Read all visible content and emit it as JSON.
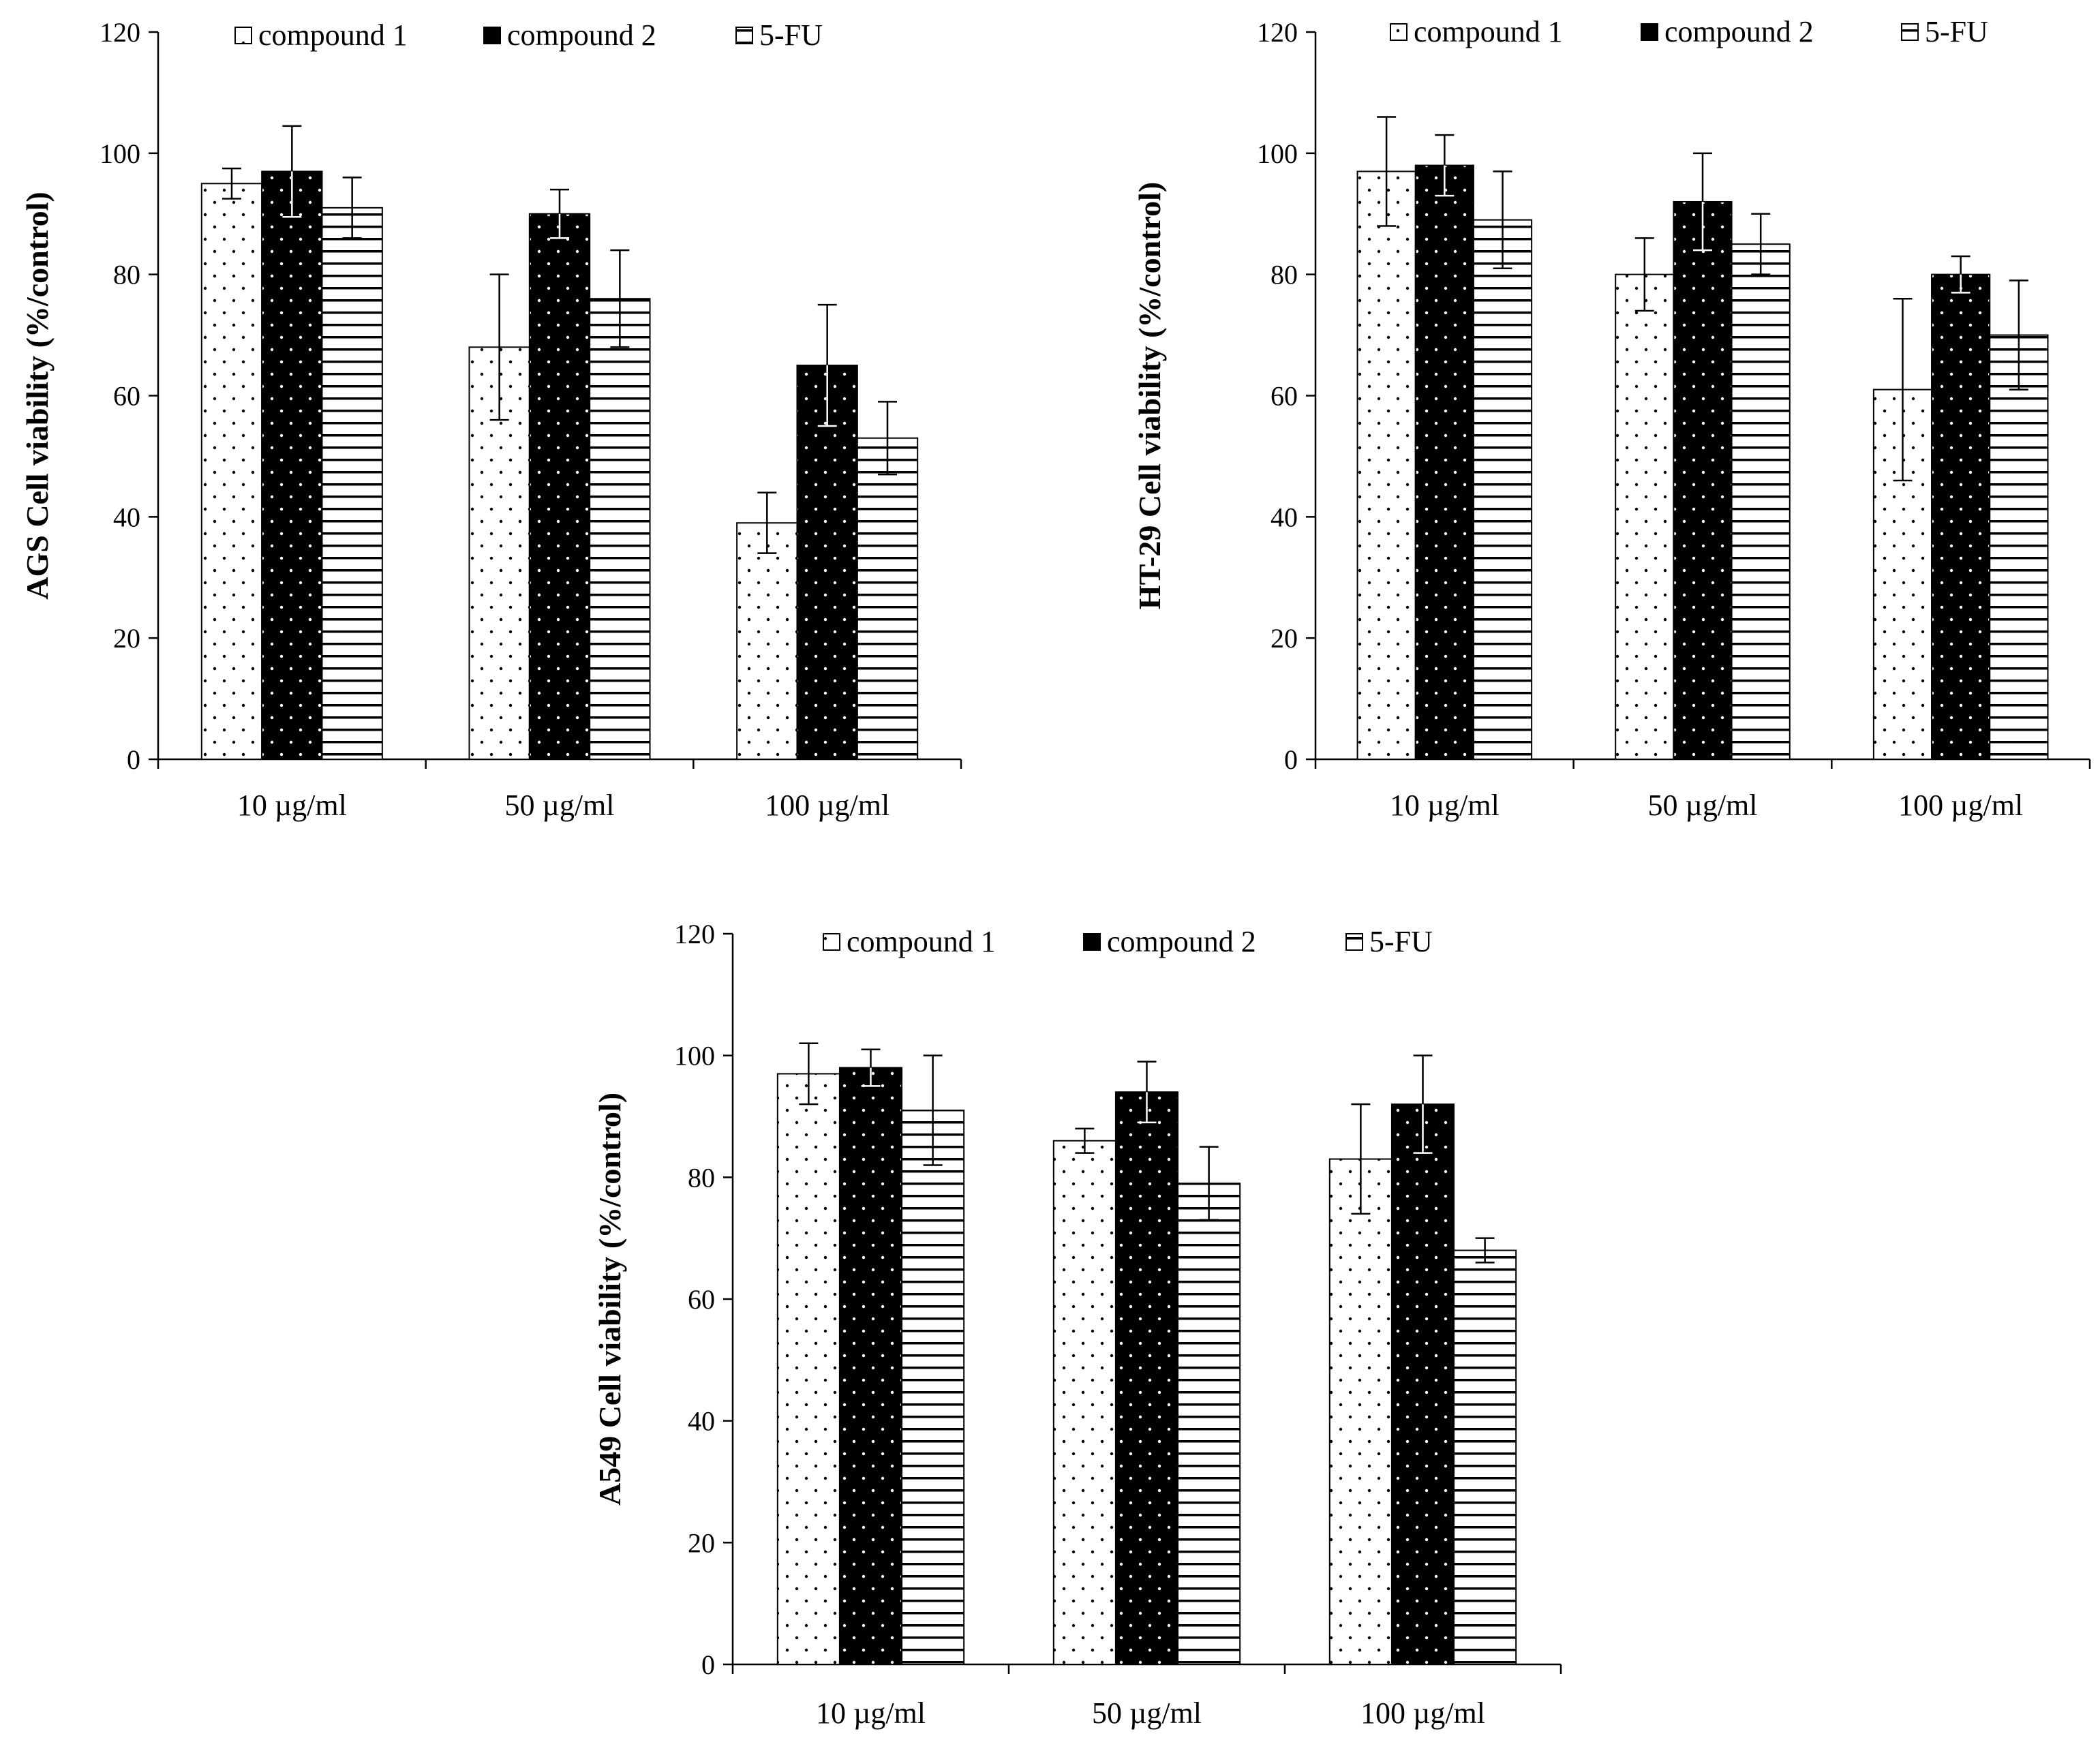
{
  "colors": {
    "axis": "#000000",
    "bar_edge": "#000000",
    "dark_fill": "#000000",
    "light_fill": "#ffffff"
  },
  "chart_data": [
    {
      "type": "bar",
      "ylabel": "AGS Cell viability (%/control)",
      "categories": [
        "10 µg/ml",
        "50 µg/ml",
        "100 µg/ml"
      ],
      "ylim": [
        0,
        120
      ],
      "yticks": [
        0,
        20,
        40,
        60,
        80,
        100,
        120
      ],
      "legend_position": "top",
      "series": [
        {
          "name": "compound 1",
          "pattern": "dots-light",
          "values": [
            95,
            68,
            39
          ],
          "errors": [
            2.5,
            12,
            5
          ]
        },
        {
          "name": "compound 2",
          "pattern": "dots-dark",
          "values": [
            97,
            90,
            65
          ],
          "errors": [
            7.5,
            4,
            10
          ]
        },
        {
          "name": "5-FU",
          "pattern": "hlines",
          "values": [
            91,
            76,
            53
          ],
          "errors": [
            5,
            8,
            6
          ]
        }
      ]
    },
    {
      "type": "bar",
      "ylabel": "HT-29 Cell viability (%/control)",
      "categories": [
        "10 µg/ml",
        "50 µg/ml",
        "100 µg/ml"
      ],
      "ylim": [
        0,
        120
      ],
      "yticks": [
        0,
        20,
        40,
        60,
        80,
        100,
        120
      ],
      "legend_position": "top",
      "series": [
        {
          "name": "compound 1",
          "pattern": "dots-light",
          "values": [
            97,
            80,
            61
          ],
          "errors": [
            9,
            6,
            15
          ]
        },
        {
          "name": "compound 2",
          "pattern": "dots-dark",
          "values": [
            98,
            92,
            80
          ],
          "errors": [
            5,
            8,
            3
          ]
        },
        {
          "name": "5-FU",
          "pattern": "hlines",
          "values": [
            89,
            85,
            70
          ],
          "errors": [
            8,
            5,
            9
          ]
        }
      ]
    },
    {
      "type": "bar",
      "ylabel": "A549 Cell viability (%/control)",
      "categories": [
        "10 µg/ml",
        "50 µg/ml",
        "100 µg/ml"
      ],
      "ylim": [
        0,
        120
      ],
      "yticks": [
        0,
        20,
        40,
        60,
        80,
        100,
        120
      ],
      "legend_position": "top",
      "series": [
        {
          "name": "compound 1",
          "pattern": "dots-light",
          "values": [
            97,
            86,
            83
          ],
          "errors": [
            5,
            2,
            9
          ]
        },
        {
          "name": "compound 2",
          "pattern": "dots-dark",
          "values": [
            98,
            94,
            92
          ],
          "errors": [
            3,
            5,
            8
          ]
        },
        {
          "name": "5-FU",
          "pattern": "hlines",
          "values": [
            91,
            79,
            68
          ],
          "errors": [
            9,
            6,
            2
          ]
        }
      ]
    }
  ]
}
